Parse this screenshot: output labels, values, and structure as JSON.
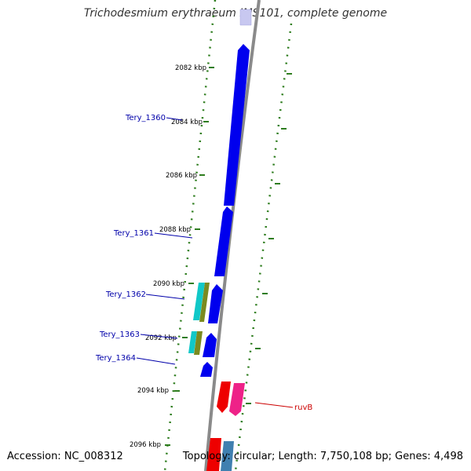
{
  "title": "Trichodesmium erythraeum IMS101, complete genome",
  "footer": {
    "accession": "Accession: NC_008312",
    "summary": "Topology: circular; Length: 7,750,108 bp; Genes: 4,498"
  },
  "colors": {
    "backbone": "#8a8a8a",
    "tick": "#2e7d1e",
    "gene_forward": "#0000ee",
    "gene_forward_pale": "#c8c8f0",
    "cyan": "#10c8c8",
    "olive": "#7a8a20",
    "red": "#ee0000",
    "pink": "#ee2288",
    "steelblue": "#4080b0",
    "label_blue": "#0000aa",
    "label_red": "#cc0000"
  },
  "scale": {
    "ticks": [
      "2082 kbp",
      "2084 kbp",
      "2086 kbp",
      "2088 kbp",
      "2090 kbp",
      "2092 kbp",
      "2094 kbp",
      "2096 kbp"
    ]
  },
  "genes": [
    {
      "label": "Tery_1360"
    },
    {
      "label": "Tery_1361"
    },
    {
      "label": "Tery_1362"
    },
    {
      "label": "Tery_1363"
    },
    {
      "label": "Tery_1364"
    },
    {
      "label": "ruvB"
    }
  ]
}
